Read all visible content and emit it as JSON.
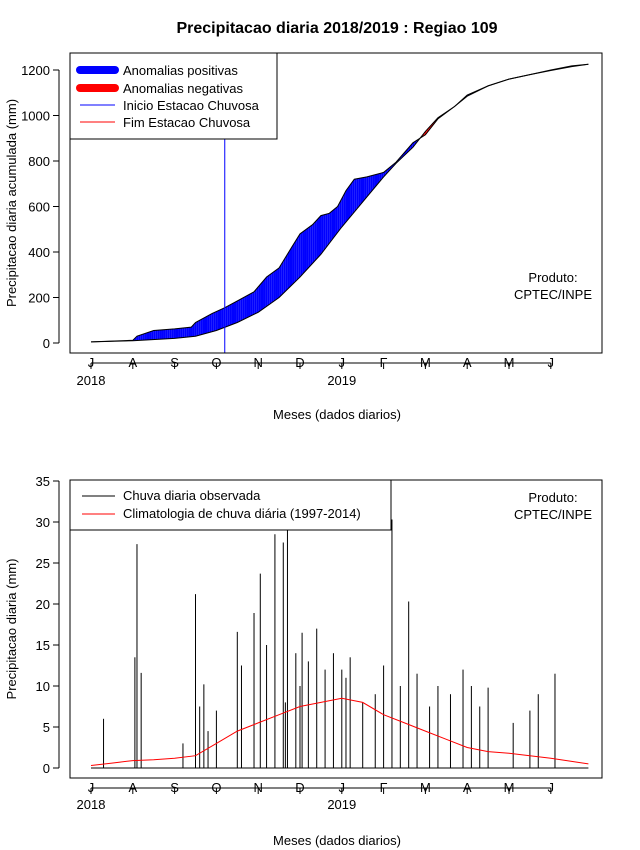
{
  "title": "Precipitacao diaria 2018/2019 : Regiao 109",
  "chart_data": [
    {
      "type": "area",
      "ylabel": "Precipitacao diaria acumulada (mm)",
      "xlabel": "Meses (dados diarios)",
      "ylim": [
        0,
        1250
      ],
      "y_ticks": [
        0,
        200,
        400,
        600,
        800,
        1000,
        1200
      ],
      "x_ticks": [
        "J",
        "A",
        "S",
        "O",
        "N",
        "D",
        "J",
        "F",
        "M",
        "A",
        "M",
        "J"
      ],
      "x_years": [
        {
          "label": "2018",
          "month_index": 0
        },
        {
          "label": "2019",
          "month_index": 6
        }
      ],
      "x_unit": "month index from July 2018 (0 = Jul)",
      "legend": {
        "position": "top-left",
        "entries": [
          {
            "label": "Anomalias positivas",
            "color": "#0000ff",
            "style": "thick"
          },
          {
            "label": "Anomalias negativas",
            "color": "#ff0000",
            "style": "thick"
          },
          {
            "label": "Inicio Estacao Chuvosa",
            "color": "#0000ff",
            "style": "line"
          },
          {
            "label": "Fim Estacao Chuvosa",
            "color": "#ff0000",
            "style": "line"
          }
        ]
      },
      "annotation": [
        "Produto:",
        "CPTEC/INPE"
      ],
      "rainy_season_start_month": 3.2,
      "colors": {
        "positive": "#0000ff",
        "negative": "#ff0000",
        "start_line": "#0000ff"
      },
      "observed": {
        "x": [
          0,
          1,
          1.1,
          1.5,
          2,
          2.4,
          2.5,
          2.9,
          3.2,
          3.5,
          3.9,
          4.2,
          4.5,
          4.8,
          5.0,
          5.3,
          5.5,
          5.7,
          5.9,
          6.1,
          6.3,
          6.6,
          7.0,
          7.3,
          7.7,
          8.0,
          8.3,
          8.7,
          9.0,
          9.5,
          10.0,
          10.5,
          11.0,
          11.5,
          11.9
        ],
        "values": [
          5,
          12,
          30,
          55,
          62,
          70,
          90,
          130,
          155,
          185,
          225,
          290,
          330,
          420,
          480,
          520,
          560,
          570,
          600,
          670,
          720,
          730,
          750,
          795,
          880,
          915,
          985,
          1040,
          1090,
          1130,
          1160,
          1180,
          1200,
          1218,
          1225
        ]
      },
      "climatology": {
        "x": [
          0,
          1,
          2,
          2.5,
          3,
          3.5,
          4,
          4.5,
          5,
          5.5,
          6,
          6.5,
          7,
          7.3,
          7.7,
          8,
          8.3,
          8.7,
          9,
          9.5,
          10,
          10.5,
          11,
          11.5,
          11.9
        ],
        "values": [
          5,
          10,
          20,
          30,
          55,
          90,
          135,
          200,
          290,
          390,
          510,
          620,
          730,
          790,
          860,
          930,
          990,
          1040,
          1085,
          1130,
          1160,
          1180,
          1198,
          1215,
          1225
        ]
      }
    },
    {
      "type": "bar",
      "ylabel": "Precipitacao diaria (mm)",
      "xlabel": "Meses (dados diarios)",
      "ylim": [
        0,
        35
      ],
      "y_ticks": [
        0,
        5,
        10,
        15,
        20,
        25,
        30,
        35
      ],
      "x_ticks": [
        "J",
        "A",
        "S",
        "O",
        "N",
        "D",
        "J",
        "F",
        "M",
        "A",
        "M",
        "J"
      ],
      "x_years": [
        {
          "label": "2018",
          "month_index": 0
        },
        {
          "label": "2019",
          "month_index": 6
        }
      ],
      "x_unit": "month index from July 2018 (0 = Jul)",
      "legend": {
        "position": "top-left",
        "entries": [
          {
            "label": "Chuva diaria observada",
            "color": "#000000"
          },
          {
            "label": "Climatologia de chuva diária (1997-2014)",
            "color": "#ff0000"
          }
        ]
      },
      "annotation": [
        "Produto:",
        "CPTEC/INPE"
      ],
      "colors": {
        "observed": "#000000",
        "climatology": "#ff0000"
      },
      "observed_spikes": {
        "x": [
          0.3,
          1.05,
          1.1,
          1.2,
          2.2,
          2.5,
          2.6,
          2.7,
          2.8,
          3.0,
          3.5,
          3.6,
          3.9,
          4.05,
          4.2,
          4.4,
          4.6,
          4.65,
          4.7,
          4.9,
          5.0,
          5.05,
          5.2,
          5.4,
          5.6,
          5.8,
          6.0,
          6.1,
          6.2,
          6.5,
          6.8,
          7.0,
          7.2,
          7.4,
          7.6,
          7.8,
          8.1,
          8.3,
          8.6,
          8.9,
          9.1,
          9.3,
          9.5,
          10.1,
          10.5,
          10.7,
          11.1
        ],
        "values": [
          6,
          13.5,
          27.3,
          11.6,
          3,
          21.2,
          7.5,
          10.2,
          4.5,
          7,
          16.6,
          12.5,
          18.9,
          23.7,
          15,
          28.5,
          27.5,
          8,
          29,
          14,
          10,
          16.5,
          13,
          17,
          12,
          14,
          12,
          11,
          13.5,
          8,
          9,
          12.5,
          30.3,
          10,
          20.3,
          11.5,
          7.5,
          10,
          9,
          12,
          10,
          7.5,
          9.8,
          5.5,
          7,
          9,
          11.5
        ]
      },
      "climatology_daily": {
        "x": [
          0,
          0.5,
          1,
          1.5,
          2,
          2.5,
          3,
          3.5,
          4,
          4.5,
          5,
          5.5,
          6,
          6.5,
          7,
          7.5,
          8,
          8.5,
          9,
          9.5,
          10,
          10.5,
          11,
          11.5,
          11.9
        ],
        "values": [
          0.3,
          0.6,
          0.9,
          1.0,
          1.2,
          1.5,
          3.0,
          4.5,
          5.5,
          6.5,
          7.5,
          8.0,
          8.5,
          8.0,
          6.5,
          5.5,
          4.5,
          3.5,
          2.5,
          2.0,
          1.8,
          1.5,
          1.2,
          0.8,
          0.5
        ]
      }
    }
  ]
}
